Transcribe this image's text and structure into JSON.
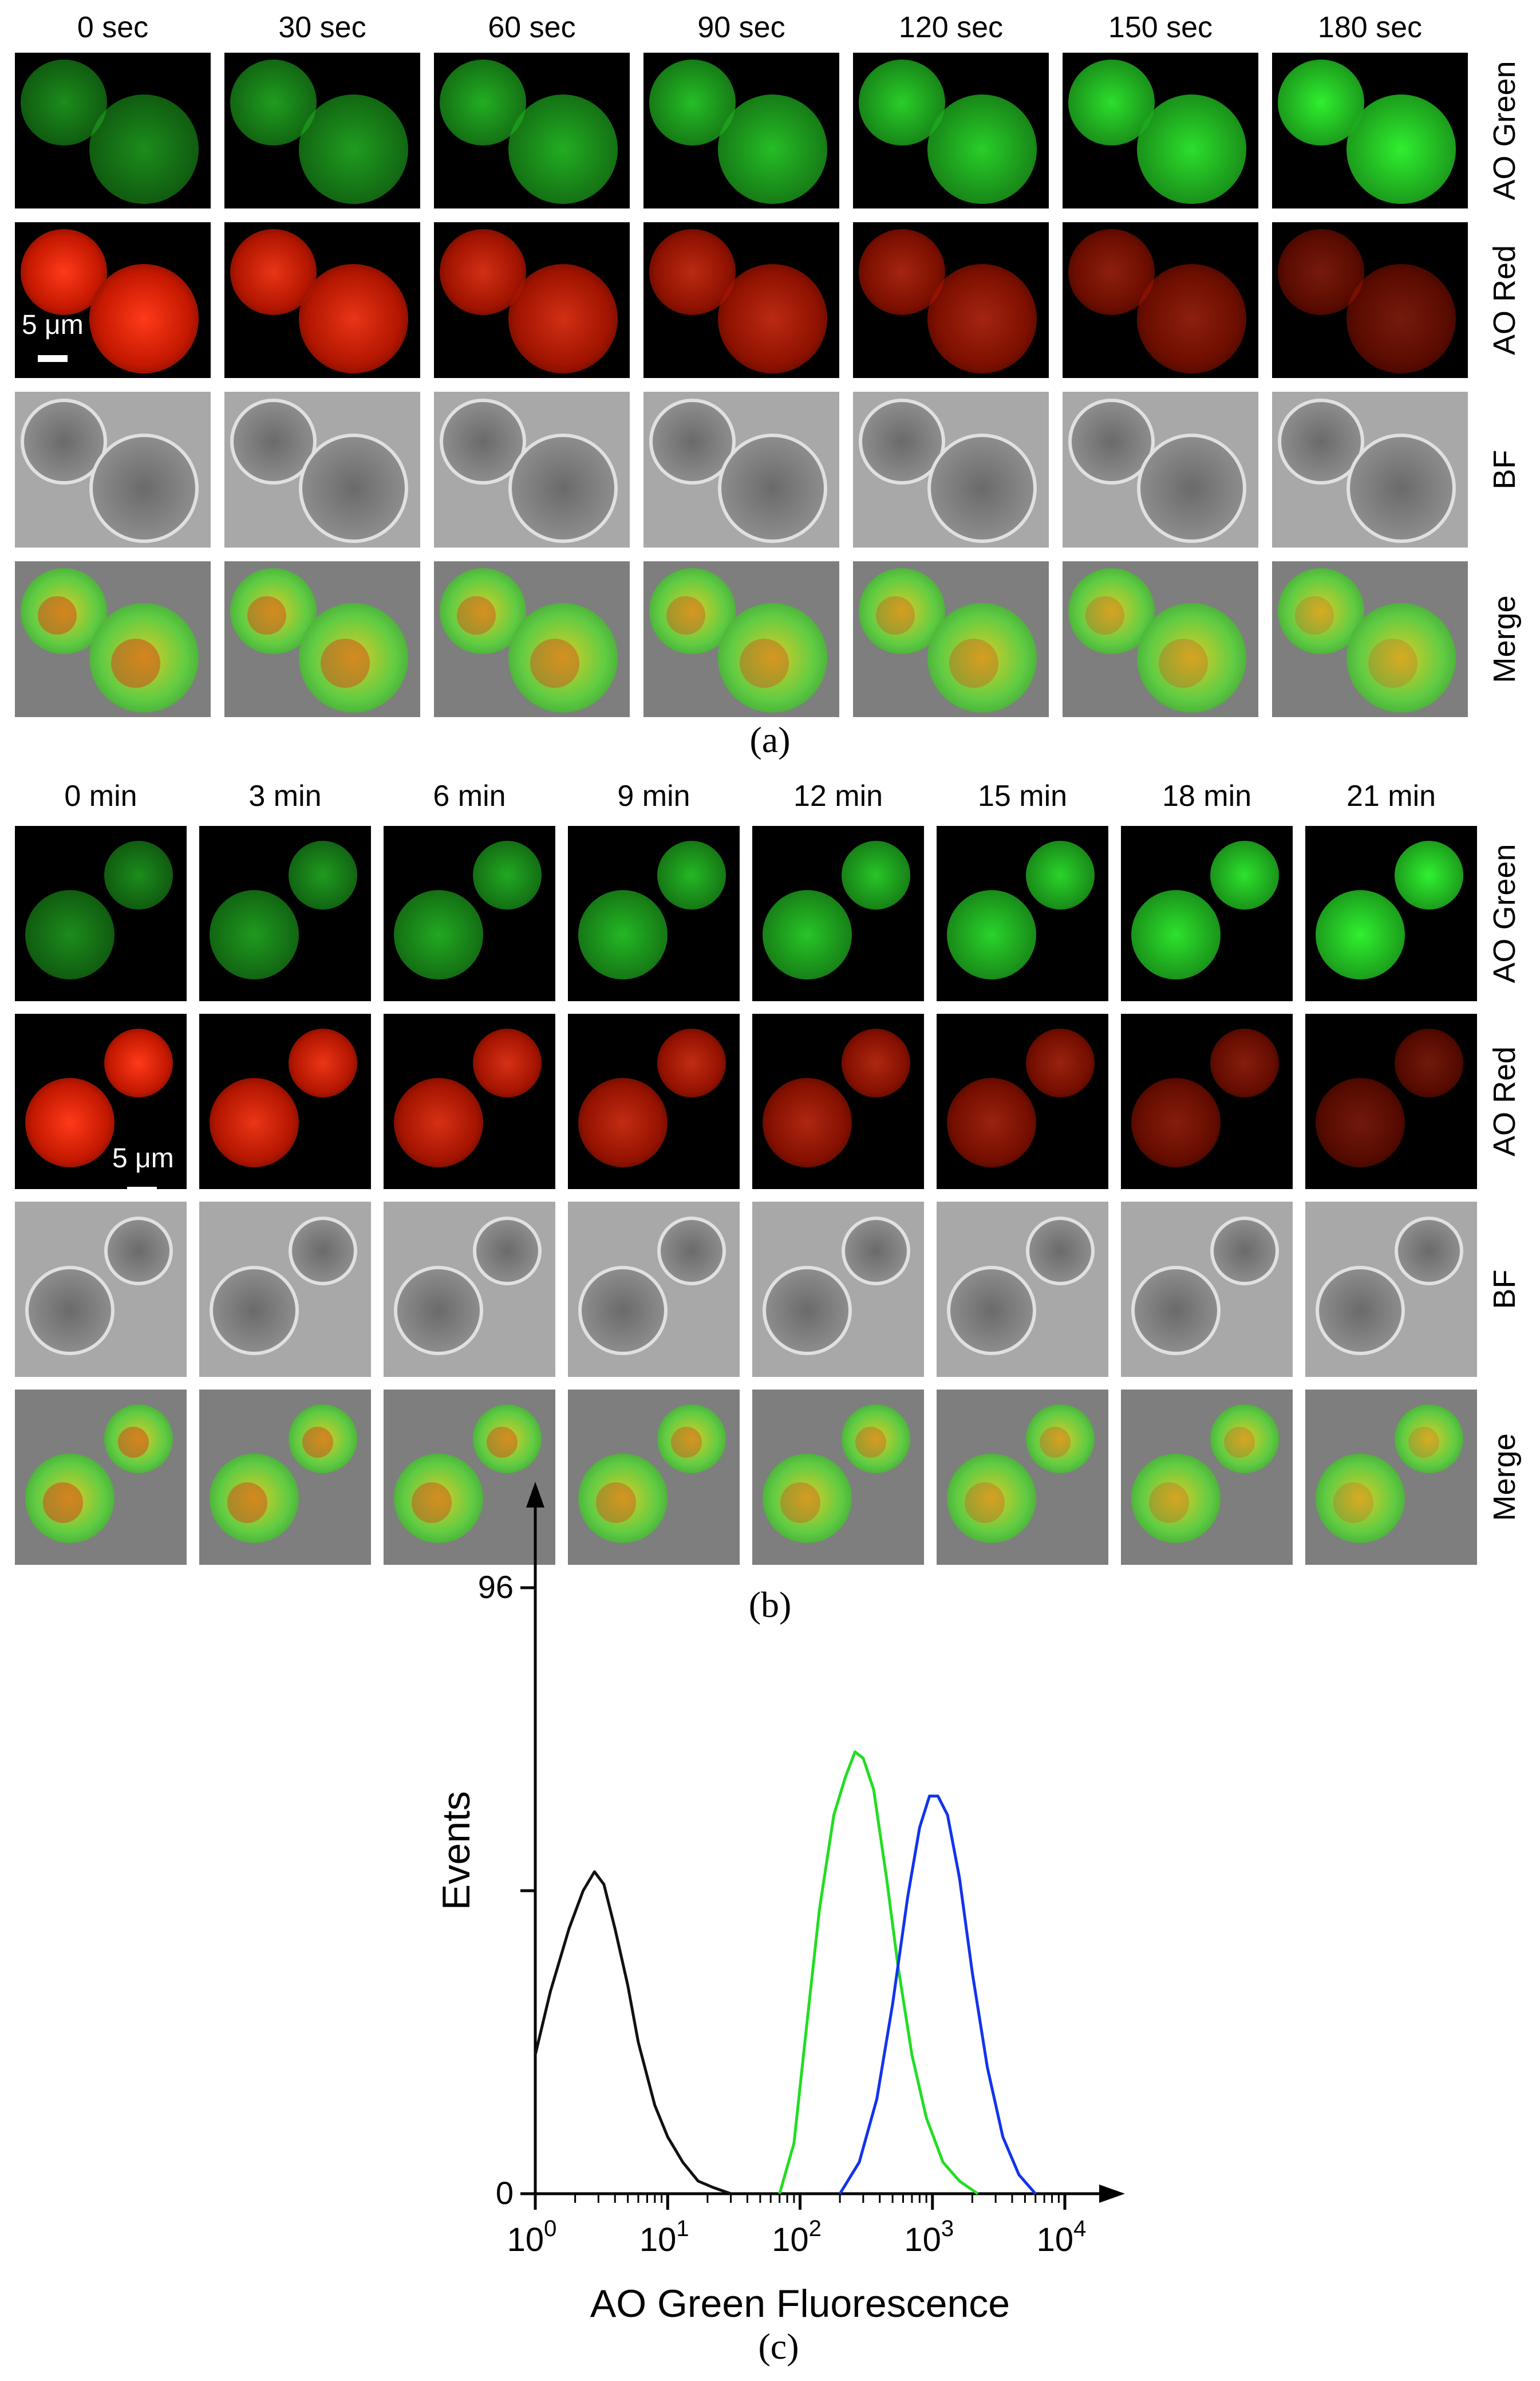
{
  "panel_a": {
    "time_labels": [
      "0 sec",
      "30 sec",
      "60 sec",
      "90 sec",
      "120 sec",
      "150 sec",
      "180 sec"
    ],
    "row_labels": [
      "AO Green",
      "AO Red",
      "BF",
      "Merge"
    ],
    "scale_bar": "5 μm",
    "caption": "(a)",
    "colors": {
      "green": "#22dd22",
      "red": "#ee2200",
      "bf": "#9a9a9a",
      "merge_bg": "#8a8a8a"
    }
  },
  "panel_b": {
    "time_labels": [
      "0 min",
      "3 min",
      "6 min",
      "9 min",
      "12 min",
      "15 min",
      "18 min",
      "21 min"
    ],
    "row_labels": [
      "AO Green",
      "AO Red",
      "BF",
      "Merge"
    ],
    "scale_bar": "5 μm",
    "caption": "(b)"
  },
  "panel_c": {
    "caption": "(c)",
    "chart_data": {
      "type": "line",
      "xlabel": "AO Green Fluorescence",
      "ylabel": "Events",
      "x_scale": "log",
      "xlim": [
        1,
        10000
      ],
      "ylim": [
        0,
        96
      ],
      "y_ticks": [
        "0",
        "96"
      ],
      "x_tick_bases": [
        "10",
        "10",
        "10",
        "10",
        "10"
      ],
      "x_tick_exps": [
        "0",
        "1",
        "2",
        "3",
        "4"
      ],
      "series": [
        {
          "color": "#111111",
          "x": [
            1,
            1.3,
            1.8,
            2.3,
            2.8,
            3.3,
            4,
            5,
            6,
            8,
            10,
            13,
            17,
            22,
            30
          ],
          "y": [
            22,
            32,
            42,
            48,
            51,
            49,
            42,
            33,
            24,
            14,
            9,
            5,
            2,
            1,
            0
          ]
        },
        {
          "color": "#22dd22",
          "x": [
            70,
            90,
            110,
            140,
            180,
            220,
            260,
            300,
            360,
            450,
            550,
            700,
            900,
            1200,
            1600,
            2200
          ],
          "y": [
            0,
            8,
            25,
            45,
            60,
            66,
            70,
            69,
            64,
            50,
            36,
            22,
            12,
            5,
            2,
            0
          ]
        },
        {
          "color": "#1133ee",
          "x": [
            200,
            280,
            380,
            500,
            650,
            800,
            950,
            1100,
            1300,
            1600,
            2000,
            2600,
            3400,
            4500,
            6000
          ],
          "y": [
            0,
            5,
            15,
            30,
            47,
            58,
            63,
            63,
            60,
            50,
            35,
            20,
            9,
            3,
            0
          ]
        }
      ]
    }
  }
}
